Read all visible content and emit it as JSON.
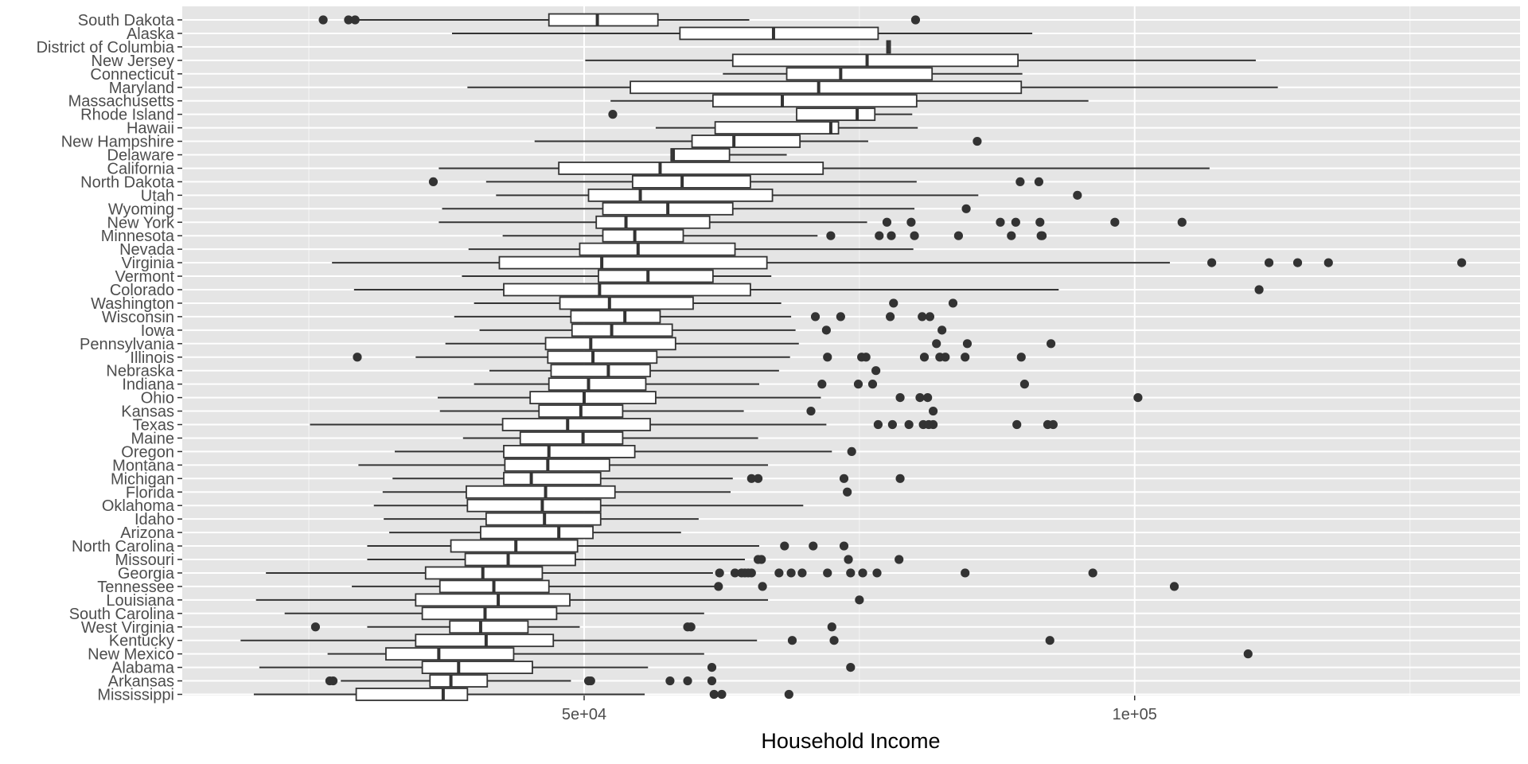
{
  "chart_data": {
    "type": "boxplot",
    "orientation": "horizontal",
    "title": "",
    "xlabel": "Household Income",
    "ylabel": "",
    "xlim": [
      13500,
      135000
    ],
    "xticks": [
      {
        "value": 50000,
        "label": "5e+04"
      },
      {
        "value": 100000,
        "label": "1e+05"
      }
    ],
    "x_minor_gridlines": [
      25000,
      75000,
      125000
    ],
    "grid": true,
    "colors": {
      "panel": "#e5e5e5",
      "grid_major": "#ffffff",
      "grid_minor": "#f2f2f2",
      "box_fill": "#ffffff",
      "line": "#333333",
      "point": "#333333",
      "axis_text": "#4d4d4d",
      "axis_title": "#000000"
    },
    "categories_top_to_bottom": [
      "South Dakota",
      "Alaska",
      "District of Columbia",
      "New Jersey",
      "Connecticut",
      "Maryland",
      "Massachusetts",
      "Rhode Island",
      "Hawaii",
      "New Hampshire",
      "Delaware",
      "California",
      "North Dakota",
      "Utah",
      "Wyoming",
      "New York",
      "Minnesota",
      "Nevada",
      "Virginia",
      "Vermont",
      "Colorado",
      "Washington",
      "Wisconsin",
      "Iowa",
      "Pennsylvania",
      "Illinois",
      "Nebraska",
      "Indiana",
      "Ohio",
      "Kansas",
      "Texas",
      "Maine",
      "Oregon",
      "Montana",
      "Michigan",
      "Florida",
      "Oklahoma",
      "Idaho",
      "Arizona",
      "North Carolina",
      "Missouri",
      "Georgia",
      "Tennessee",
      "Louisiana",
      "South Carolina",
      "West Virginia",
      "Kentucky",
      "New Mexico",
      "Alabama",
      "Arkansas",
      "Mississippi"
    ],
    "series": [
      {
        "name": "South Dakota",
        "whisker_low": 29000,
        "q1": 46800,
        "median": 51200,
        "q3": 56700,
        "whisker_high": 65000,
        "outliers": [
          26300,
          28600,
          29200,
          80100
        ]
      },
      {
        "name": "Alaska",
        "whisker_low": 38000,
        "q1": 58700,
        "median": 67200,
        "q3": 76700,
        "whisker_high": 90700,
        "outliers": []
      },
      {
        "name": "District of Columbia",
        "whisker_low": 77500,
        "q1": 77500,
        "median": 77600,
        "q3": 77800,
        "whisker_high": 77800,
        "outliers": []
      },
      {
        "name": "New Jersey",
        "whisker_low": 50100,
        "q1": 63500,
        "median": 75700,
        "q3": 89400,
        "whisker_high": 111000,
        "outliers": []
      },
      {
        "name": "Connecticut",
        "whisker_low": 62600,
        "q1": 68400,
        "median": 73300,
        "q3": 81600,
        "whisker_high": 89800,
        "outliers": []
      },
      {
        "name": "Maryland",
        "whisker_low": 39400,
        "q1": 54200,
        "median": 71300,
        "q3": 89700,
        "whisker_high": 113000,
        "outliers": []
      },
      {
        "name": "Massachusetts",
        "whisker_low": 52400,
        "q1": 61700,
        "median": 68000,
        "q3": 80200,
        "whisker_high": 95800,
        "outliers": []
      },
      {
        "name": "Rhode Island",
        "whisker_low": 69300,
        "q1": 69300,
        "median": 74800,
        "q3": 76400,
        "whisker_high": 79800,
        "outliers": [
          52600
        ]
      },
      {
        "name": "Hawaii",
        "whisker_low": 56500,
        "q1": 61900,
        "median": 72400,
        "q3": 73100,
        "whisker_high": 80300,
        "outliers": []
      },
      {
        "name": "New Hampshire",
        "whisker_low": 45500,
        "q1": 59800,
        "median": 63600,
        "q3": 69600,
        "whisker_high": 75800,
        "outliers": [
          85700
        ]
      },
      {
        "name": "Delaware",
        "whisker_low": 57900,
        "q1": 57900,
        "median": 58100,
        "q3": 63200,
        "whisker_high": 68400,
        "outliers": []
      },
      {
        "name": "California",
        "whisker_low": 36800,
        "q1": 47700,
        "median": 56900,
        "q3": 71700,
        "whisker_high": 106800,
        "outliers": []
      },
      {
        "name": "North Dakota",
        "whisker_low": 41100,
        "q1": 54400,
        "median": 58900,
        "q3": 65100,
        "whisker_high": 80200,
        "outliers": [
          36300,
          89600,
          91300
        ]
      },
      {
        "name": "Utah",
        "whisker_low": 42000,
        "q1": 50400,
        "median": 55100,
        "q3": 67100,
        "whisker_high": 85800,
        "outliers": [
          94800
        ]
      },
      {
        "name": "Wyoming",
        "whisker_low": 37100,
        "q1": 51700,
        "median": 57600,
        "q3": 63500,
        "whisker_high": 80000,
        "outliers": [
          84700
        ]
      },
      {
        "name": "New York",
        "whisker_low": 36800,
        "q1": 51100,
        "median": 53800,
        "q3": 61400,
        "whisker_high": 75700,
        "outliers": [
          77500,
          79700,
          87800,
          89200,
          91400,
          98200,
          104300
        ]
      },
      {
        "name": "Minnesota",
        "whisker_low": 42600,
        "q1": 51700,
        "median": 54600,
        "q3": 59000,
        "whisker_high": 71200,
        "outliers": [
          72400,
          76800,
          77900,
          80000,
          84000,
          88800,
          91500,
          91600
        ]
      },
      {
        "name": "Nevada",
        "whisker_low": 39500,
        "q1": 49600,
        "median": 54900,
        "q3": 63700,
        "whisker_high": 79900,
        "outliers": []
      },
      {
        "name": "Virginia",
        "whisker_low": 27100,
        "q1": 42300,
        "median": 51600,
        "q3": 66600,
        "whisker_high": 103200,
        "outliers": [
          107000,
          112200,
          114800,
          117600,
          129700
        ]
      },
      {
        "name": "Vermont",
        "whisker_low": 38900,
        "q1": 51300,
        "median": 55800,
        "q3": 61700,
        "whisker_high": 67000,
        "outliers": []
      },
      {
        "name": "Colorado",
        "whisker_low": 29100,
        "q1": 42700,
        "median": 51400,
        "q3": 65100,
        "whisker_high": 93100,
        "outliers": [
          111300
        ]
      },
      {
        "name": "Washington",
        "whisker_low": 40000,
        "q1": 47800,
        "median": 52300,
        "q3": 59900,
        "whisker_high": 67900,
        "outliers": [
          78100,
          83500
        ]
      },
      {
        "name": "Wisconsin",
        "whisker_low": 38200,
        "q1": 48800,
        "median": 53700,
        "q3": 56900,
        "whisker_high": 68800,
        "outliers": [
          71000,
          73300,
          77800,
          80700,
          81400
        ]
      },
      {
        "name": "Iowa",
        "whisker_low": 40500,
        "q1": 48900,
        "median": 52500,
        "q3": 58000,
        "whisker_high": 69200,
        "outliers": [
          72000,
          82500
        ]
      },
      {
        "name": "Pennsylvania",
        "whisker_low": 37400,
        "q1": 46500,
        "median": 50600,
        "q3": 58300,
        "whisker_high": 69500,
        "outliers": [
          82000,
          84800,
          92400
        ]
      },
      {
        "name": "Illinois",
        "whisker_low": 34700,
        "q1": 46700,
        "median": 50800,
        "q3": 56600,
        "whisker_high": 68700,
        "outliers": [
          29400,
          72100,
          75200,
          75600,
          80900,
          82300,
          82800,
          84600,
          89700
        ]
      },
      {
        "name": "Nebraska",
        "whisker_low": 41400,
        "q1": 47000,
        "median": 52200,
        "q3": 56000,
        "whisker_high": 67700,
        "outliers": [
          76500
        ]
      },
      {
        "name": "Indiana",
        "whisker_low": 40000,
        "q1": 46800,
        "median": 50400,
        "q3": 55600,
        "whisker_high": 65900,
        "outliers": [
          71600,
          74900,
          76200,
          90000
        ]
      },
      {
        "name": "Ohio",
        "whisker_low": 36700,
        "q1": 45100,
        "median": 50000,
        "q3": 56500,
        "whisker_high": 71500,
        "outliers": [
          78700,
          80500,
          81200,
          100300
        ]
      },
      {
        "name": "Kansas",
        "whisker_low": 36900,
        "q1": 45900,
        "median": 49700,
        "q3": 53500,
        "whisker_high": 64500,
        "outliers": [
          70600,
          81700
        ]
      },
      {
        "name": "Texas",
        "whisker_low": 25100,
        "q1": 42600,
        "median": 48500,
        "q3": 56000,
        "whisker_high": 72000,
        "outliers": [
          76700,
          78000,
          79500,
          80800,
          81300,
          81700,
          89300,
          92100,
          92600
        ]
      },
      {
        "name": "Maine",
        "whisker_low": 39000,
        "q1": 44200,
        "median": 49900,
        "q3": 53500,
        "whisker_high": 65800,
        "outliers": []
      },
      {
        "name": "Oregon",
        "whisker_low": 32800,
        "q1": 42700,
        "median": 46800,
        "q3": 54600,
        "whisker_high": 72500,
        "outliers": [
          74300
        ]
      },
      {
        "name": "Montana",
        "whisker_low": 29500,
        "q1": 42800,
        "median": 46700,
        "q3": 52300,
        "whisker_high": 66700,
        "outliers": []
      },
      {
        "name": "Michigan",
        "whisker_low": 32600,
        "q1": 42700,
        "median": 45200,
        "q3": 51500,
        "whisker_high": 63500,
        "outliers": [
          65200,
          65800,
          73600,
          78700
        ]
      },
      {
        "name": "Florida",
        "whisker_low": 31700,
        "q1": 39300,
        "median": 46500,
        "q3": 52800,
        "whisker_high": 63300,
        "outliers": [
          73900
        ]
      },
      {
        "name": "Oklahoma",
        "whisker_low": 30900,
        "q1": 39400,
        "median": 46200,
        "q3": 51500,
        "whisker_high": 69900,
        "outliers": []
      },
      {
        "name": "Idaho",
        "whisker_low": 31800,
        "q1": 41100,
        "median": 46400,
        "q3": 51500,
        "whisker_high": 60400,
        "outliers": []
      },
      {
        "name": "Arizona",
        "whisker_low": 32300,
        "q1": 40600,
        "median": 47700,
        "q3": 50800,
        "whisker_high": 58800,
        "outliers": []
      },
      {
        "name": "North Carolina",
        "whisker_low": 30300,
        "q1": 37900,
        "median": 43800,
        "q3": 49400,
        "whisker_high": 65900,
        "outliers": [
          68200,
          70800,
          73600
        ]
      },
      {
        "name": "Missouri",
        "whisker_low": 30300,
        "q1": 39200,
        "median": 43100,
        "q3": 49200,
        "whisker_high": 64600,
        "outliers": [
          65800,
          66100,
          74000,
          78600
        ]
      },
      {
        "name": "Georgia",
        "whisker_low": 21100,
        "q1": 35600,
        "median": 40800,
        "q3": 46200,
        "whisker_high": 61700,
        "outliers": [
          62300,
          63700,
          64300,
          64600,
          64900,
          65200,
          67700,
          68800,
          69800,
          72100,
          74200,
          75300,
          76600,
          84600,
          96200
        ]
      },
      {
        "name": "Tennessee",
        "whisker_low": 28900,
        "q1": 36900,
        "median": 41800,
        "q3": 46800,
        "whisker_high": 62200,
        "outliers": [
          62200,
          66200,
          103600
        ]
      },
      {
        "name": "Louisiana",
        "whisker_low": 20200,
        "q1": 34700,
        "median": 42200,
        "q3": 48700,
        "whisker_high": 66700,
        "outliers": [
          75000
        ]
      },
      {
        "name": "South Carolina",
        "whisker_low": 22800,
        "q1": 35300,
        "median": 41000,
        "q3": 47500,
        "whisker_high": 60900,
        "outliers": []
      },
      {
        "name": "West Virginia",
        "whisker_low": 30300,
        "q1": 37800,
        "median": 40600,
        "q3": 44900,
        "whisker_high": 49600,
        "outliers": [
          25600,
          59400,
          59700,
          72500
        ]
      },
      {
        "name": "Kentucky",
        "whisker_low": 18800,
        "q1": 34700,
        "median": 41100,
        "q3": 47200,
        "whisker_high": 65700,
        "outliers": [
          68900,
          72700,
          92300
        ]
      },
      {
        "name": "New Mexico",
        "whisker_low": 26700,
        "q1": 32000,
        "median": 36800,
        "q3": 43600,
        "whisker_high": 60900,
        "outliers": [
          110300
        ]
      },
      {
        "name": "Alabama",
        "whisker_low": 20500,
        "q1": 35300,
        "median": 38600,
        "q3": 45300,
        "whisker_high": 55800,
        "outliers": [
          61600,
          74200
        ]
      },
      {
        "name": "Arkansas",
        "whisker_low": 27900,
        "q1": 36000,
        "median": 37900,
        "q3": 41200,
        "whisker_high": 48800,
        "outliers": [
          26900,
          27200,
          50400,
          50600,
          57800,
          59400,
          61600
        ]
      },
      {
        "name": "Mississippi",
        "whisker_low": 20000,
        "q1": 29300,
        "median": 37200,
        "q3": 39400,
        "whisker_high": 55500,
        "outliers": [
          61800,
          62500,
          68600
        ]
      }
    ]
  }
}
